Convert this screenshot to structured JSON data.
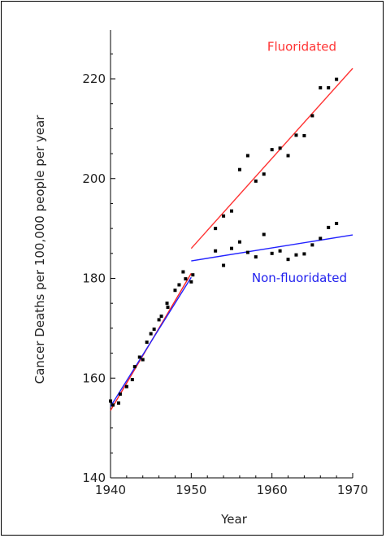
{
  "chart_data": {
    "type": "scatter",
    "xlabel": "Year",
    "ylabel": "Cancer Deaths per 100,000 people per year",
    "xlim": [
      1940,
      1970
    ],
    "ylim": [
      140,
      230
    ],
    "xticks": [
      1940,
      1950,
      1960,
      1970
    ],
    "yticks": [
      140,
      160,
      180,
      200,
      220
    ],
    "grid": false,
    "annotations": [
      {
        "text": "Fluoridated",
        "color": "#ff3333",
        "x": 1963.7,
        "y": 225.6
      },
      {
        "text": "Non-fluoridated",
        "color": "#2222ee",
        "x": 1963.4,
        "y": 179.3
      }
    ],
    "series": [
      {
        "color": "#000000",
        "x": [
          1940,
          1941,
          1942,
          1943,
          1944,
          1945,
          1946,
          1947,
          1948,
          1949,
          1950
        ],
        "y": [
          155.4,
          155.0,
          158.3,
          162.3,
          163.7,
          168.9,
          171.7,
          175.0,
          177.6,
          181.3,
          179.3
        ]
      },
      {
        "color": "#000000",
        "x": [
          1940.3,
          1941.2,
          1942.7,
          1943.6,
          1944.5,
          1945.4,
          1946.3,
          1947.1,
          1948.5,
          1949.3,
          1950.2
        ],
        "y": [
          154.6,
          156.8,
          159.7,
          164.2,
          167.2,
          169.8,
          172.4,
          174.2,
          178.7,
          179.9,
          180.7
        ]
      },
      {
        "name": "Fluoridated",
        "color": "#000000",
        "x": [
          1953,
          1954,
          1955,
          1956,
          1957,
          1958,
          1959,
          1960,
          1961,
          1962,
          1963,
          1964,
          1965,
          1966,
          1967,
          1968
        ],
        "y": [
          190.0,
          192.5,
          193.5,
          201.8,
          204.6,
          199.5,
          200.9,
          205.8,
          206.1,
          204.6,
          208.7,
          208.6,
          212.6,
          218.2,
          218.2,
          219.9
        ]
      },
      {
        "name": "Non-fluoridated",
        "color": "#000000",
        "x": [
          1953,
          1954,
          1955,
          1956,
          1957,
          1958,
          1959,
          1960,
          1961,
          1962,
          1963,
          1964,
          1965,
          1966,
          1967,
          1968
        ],
        "y": [
          185.5,
          182.6,
          186.0,
          187.3,
          185.2,
          184.3,
          188.8,
          185.0,
          185.5,
          183.8,
          184.7,
          184.9,
          186.7,
          188.0,
          190.2,
          191.0
        ]
      }
    ],
    "trend_lines": [
      {
        "color": "#ff2222",
        "x": [
          1940,
          1950
        ],
        "y": [
          153.5,
          181.0
        ]
      },
      {
        "color": "#2222ff",
        "x": [
          1940,
          1950
        ],
        "y": [
          154.3,
          180.2
        ]
      },
      {
        "color": "#ff3333",
        "x": [
          1950,
          1970
        ],
        "y": [
          186.0,
          222.1
        ]
      },
      {
        "color": "#2222ff",
        "x": [
          1950,
          1970
        ],
        "y": [
          183.5,
          188.7
        ]
      }
    ]
  }
}
